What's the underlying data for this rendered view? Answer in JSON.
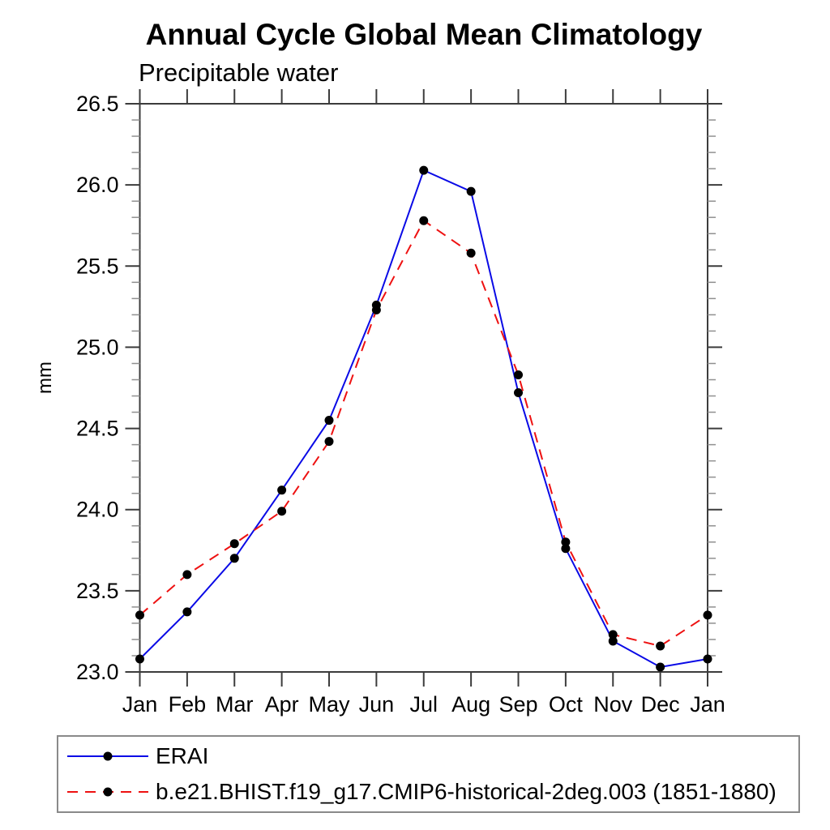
{
  "header": {
    "title": "Annual Cycle Global Mean Climatology",
    "subtitle": "Precipitable water"
  },
  "chart_data": {
    "type": "line",
    "title": "Annual Cycle Global Mean Climatology",
    "subtitle": "Precipitable water",
    "ylabel": "mm",
    "xlabel": "",
    "ylim": [
      23.0,
      26.5
    ],
    "ytick_interval": 0.5,
    "yminor_interval": 0.1,
    "ytick_labels": [
      "23.0",
      "23.5",
      "24.0",
      "24.5",
      "25.0",
      "25.5",
      "26.0",
      "26.5"
    ],
    "grid": false,
    "legend_position": "bottom-left",
    "categories": [
      "Jan",
      "Feb",
      "Mar",
      "Apr",
      "May",
      "Jun",
      "Jul",
      "Aug",
      "Sep",
      "Oct",
      "Nov",
      "Dec",
      "Jan"
    ],
    "series": [
      {
        "name": "ERAI",
        "color": "#0a0ae6",
        "line_style": "solid",
        "marker": "filled-circle",
        "marker_color": "#000000",
        "values": [
          23.08,
          23.37,
          23.7,
          24.12,
          24.55,
          25.26,
          26.09,
          25.96,
          24.72,
          23.76,
          23.19,
          23.03,
          23.08
        ]
      },
      {
        "name": "b.e21.BHIST.f19_g17.CMIP6-historical-2deg.003 (1851-1880)",
        "color": "#ee1111",
        "line_style": "dashed",
        "marker": "filled-circle",
        "marker_color": "#000000",
        "values": [
          23.35,
          23.6,
          23.79,
          23.99,
          24.42,
          25.23,
          25.78,
          25.58,
          24.83,
          23.8,
          23.23,
          23.16,
          23.35
        ]
      }
    ]
  },
  "colors": {
    "axis": "#3c3c3c",
    "minor_tick": "#909090",
    "legend_border": "#8a8a8a",
    "background": "#ffffff"
  }
}
